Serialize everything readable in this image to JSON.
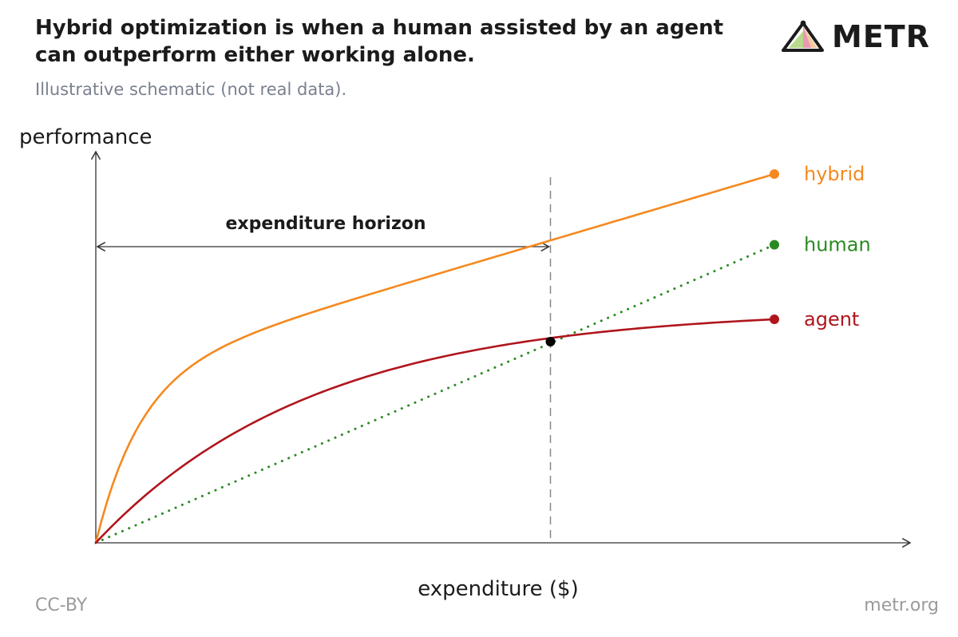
{
  "header": {
    "title": "Hybrid optimization is when a human assisted by an agent can outperform either working alone.",
    "subtitle": "Illustrative schematic (not real data)."
  },
  "logo": {
    "text": "METR",
    "icon": "metr-logo-icon"
  },
  "footer": {
    "license": "CC-BY",
    "site": "metr.org"
  },
  "chart_data": {
    "type": "line",
    "ylabel": "performance",
    "xlabel": "expenditure ($)",
    "annotation": "expenditure horizon",
    "grid": false,
    "series": [
      {
        "name": "hybrid",
        "color": "#f5891f",
        "style": "solid",
        "shape": "fast-rise-then-linear",
        "end_value": 0.99
      },
      {
        "name": "human",
        "color": "#2a8a22",
        "style": "dotted",
        "shape": "linear",
        "end_value": 0.8
      },
      {
        "name": "agent",
        "color": "#b0151d",
        "style": "solid",
        "shape": "saturating",
        "end_value": 0.6
      }
    ],
    "crossover": {
      "x": 0.67,
      "y": 0.54,
      "label": "expenditure horizon"
    },
    "xlim": [
      0,
      1.2
    ],
    "ylim": [
      0,
      1.05
    ]
  }
}
